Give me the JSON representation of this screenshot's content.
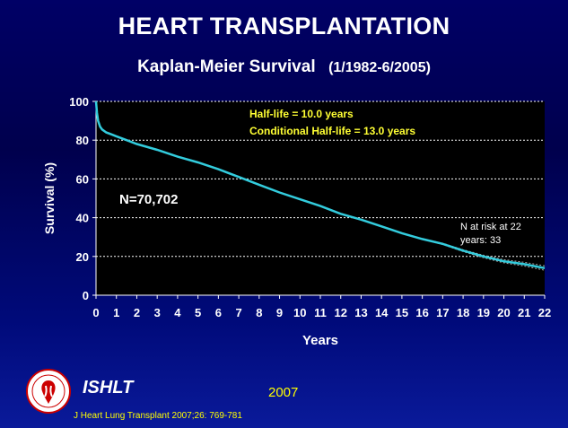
{
  "slide": {
    "title": "HEART TRANSPLANTATION",
    "subtitle": "Kaplan-Meier Survival",
    "date_range": "(1/1982-6/2005)",
    "org_label": "ISHLT",
    "year": "2007",
    "citation": "J Heart Lung Transplant 2007;26: 769-781"
  },
  "chart_data": {
    "type": "line",
    "xlabel": "Years",
    "ylabel": "Survival (%)",
    "xlim": [
      0,
      22
    ],
    "ylim": [
      0,
      100
    ],
    "x_ticks": [
      0,
      1,
      2,
      3,
      4,
      5,
      6,
      7,
      8,
      9,
      10,
      11,
      12,
      13,
      14,
      15,
      16,
      17,
      18,
      19,
      20,
      21,
      22
    ],
    "y_ticks": [
      0,
      20,
      40,
      60,
      80,
      100
    ],
    "grid": "horizontal dashed",
    "annotations": {
      "half_life": "Half-life = 10.0 years",
      "conditional_half_life": "Conditional Half-life = 13.0 years",
      "n": "N=70,702",
      "n_at_risk_line1": "N at risk at 22",
      "n_at_risk_line2": "years:  33"
    },
    "series": [
      {
        "x": [
          0,
          0.05,
          0.1,
          0.2,
          0.3,
          0.5,
          0.75,
          1,
          1.5,
          2,
          3,
          4,
          5,
          6,
          7,
          8,
          9,
          10,
          11,
          12,
          13,
          14,
          15,
          16,
          17,
          18,
          19,
          20,
          21,
          22
        ],
        "y": [
          100,
          94,
          90,
          87,
          85.5,
          84,
          83,
          82,
          80,
          78,
          75,
          71.5,
          68.5,
          65,
          61,
          57,
          53,
          49.5,
          46,
          42,
          39,
          35.5,
          32,
          29,
          26.5,
          23,
          20,
          17.5,
          16,
          14
        ]
      }
    ],
    "colors": {
      "plot_background": "#000000",
      "curve": "#33ccdd",
      "confidence": "#aaaaaa",
      "annotation_yellow": "#ffff33",
      "axis_text": "#ffffff"
    }
  }
}
